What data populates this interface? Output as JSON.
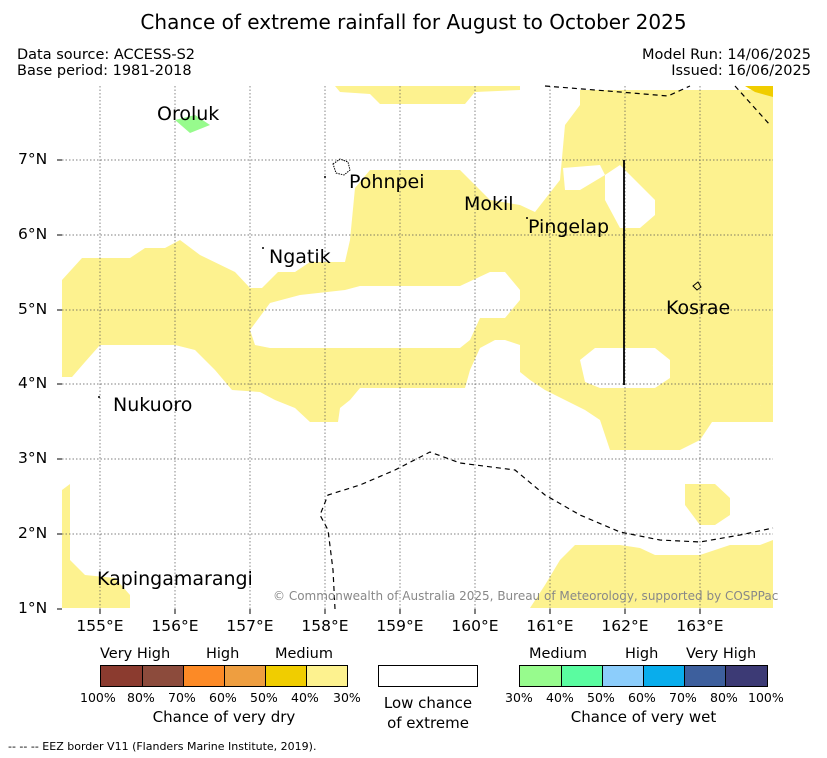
{
  "title": "Chance of extreme rainfall for August to October 2025",
  "data_source": "Data source: ACCESS-S2",
  "base_period": "Base period: 1981-2018",
  "model_run": "Model Run: 14/06/2025",
  "issued": "Issued: 16/06/2025",
  "copyright": "© Commonwealth of Australia 2025, Bureau of Meteorology, supported by COSPPac",
  "eez_note": "--  --  -- EEZ border V11 (Flanders Marine Institute, 2019).",
  "map": {
    "lon_ticks": [
      "155°E",
      "156°E",
      "157°E",
      "158°E",
      "159°E",
      "160°E",
      "161°E",
      "162°E",
      "163°E"
    ],
    "lat_ticks": [
      "7°N",
      "6°N",
      "5°N",
      "4°N",
      "3°N",
      "2°N",
      "1°N"
    ],
    "places": [
      {
        "name": "Oroluk"
      },
      {
        "name": "Pohnpei"
      },
      {
        "name": "Mokil"
      },
      {
        "name": "Pingelap"
      },
      {
        "name": "Ngatik"
      },
      {
        "name": "Kosrae"
      },
      {
        "name": "Nukuoro"
      },
      {
        "name": "Kapingamarangi"
      }
    ],
    "colors": {
      "dry_medium_light": "#fdf28f",
      "dry_medium": "#f0cd00",
      "wet_medium": "#97fb8d"
    }
  },
  "legend": {
    "dry": {
      "categories": [
        "Very High",
        "High",
        "Medium"
      ],
      "percentages": [
        "100%",
        "80%",
        "70%",
        "60%",
        "50%",
        "40%",
        "30%"
      ],
      "colors": [
        "#8b3b2f",
        "#8c4b3c",
        "#fc8a26",
        "#ee9e40",
        "#f0cd00",
        "#fdf28f"
      ],
      "caption": "Chance of very dry"
    },
    "low": {
      "line1": "Low chance",
      "line2": "of extreme"
    },
    "wet": {
      "categories": [
        "Medium",
        "High",
        "Very High"
      ],
      "percentages": [
        "30%",
        "40%",
        "50%",
        "60%",
        "70%",
        "80%",
        "100%"
      ],
      "colors": [
        "#97fb8d",
        "#5afca0",
        "#8ccdfb",
        "#09adec",
        "#3d5f9d",
        "#3c3a75"
      ],
      "caption": "Chance of very wet"
    }
  }
}
